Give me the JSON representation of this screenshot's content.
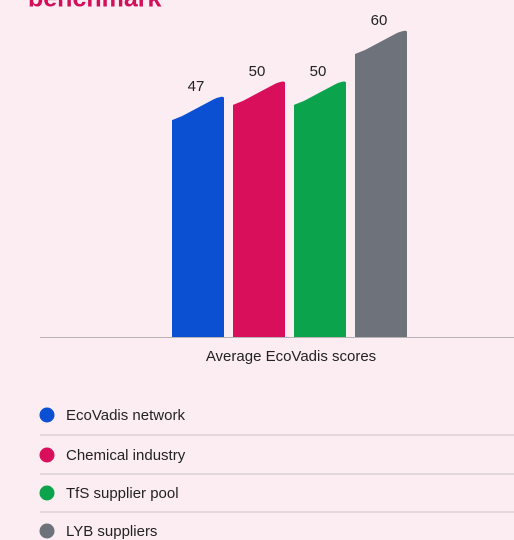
{
  "chart_data": {
    "type": "bar",
    "title": "benchmark",
    "x_label": "Average EcoVadis scores",
    "categories": [
      "EcoVadis network",
      "Chemical industry",
      "TfS supplier pool",
      "LYB suppliers"
    ],
    "values": [
      47,
      50,
      50,
      60
    ],
    "colors": [
      "#0b4fd2",
      "#da0f5b",
      "#0ba34b",
      "#6e727a"
    ],
    "legend": "bottom"
  }
}
